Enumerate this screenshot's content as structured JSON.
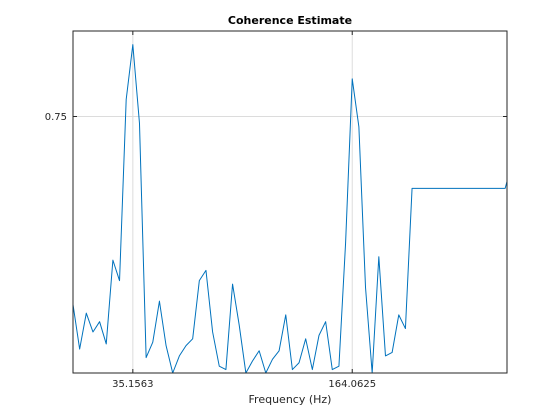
{
  "chart_data": {
    "type": "line",
    "title": "Coherence Estimate",
    "xlabel": "Frequency (Hz)",
    "ylabel": "",
    "xlim": [
      0,
      255
    ],
    "ylim": [
      0,
      1
    ],
    "xticks": [
      35.15625,
      164.0625
    ],
    "xtick_labels": [
      "35.1563",
      "164.0625"
    ],
    "yticks": [
      0.75
    ],
    "ytick_labels": [
      "0.75"
    ],
    "grid": true,
    "line_color": "#0072BD",
    "series": [
      {
        "x": [
          0,
          3.906,
          7.813,
          11.719,
          15.625,
          19.531,
          23.438,
          27.344,
          31.25,
          35.156,
          39.063,
          42.969,
          46.875,
          50.781,
          54.688,
          58.594,
          62.5,
          66.406,
          70.313,
          74.219,
          78.125,
          82.031,
          85.938,
          89.844,
          93.75,
          97.656,
          101.563,
          105.469,
          109.375,
          113.281,
          117.188,
          121.094,
          125,
          128.906,
          132.813,
          136.719,
          140.625,
          144.531,
          148.438,
          152.344,
          156.25,
          160.156,
          164.063,
          167.969,
          171.875,
          175.781,
          179.688,
          183.594,
          187.5,
          191.406,
          195.313,
          199.219,
          203.125,
          207.031,
          210.938,
          214.844,
          218.75,
          222.656,
          226.563,
          230.469,
          234.375,
          238.281,
          242.188,
          246.094,
          250,
          253.906,
          255
        ],
        "y": [
          0.2,
          0.07,
          0.175,
          0.12,
          0.15,
          0.085,
          0.33,
          0.27,
          0.8,
          0.96,
          0.73,
          0.045,
          0.09,
          0.21,
          0.08,
          0.0,
          0.05,
          0.08,
          0.1,
          0.27,
          0.3,
          0.12,
          0.02,
          0.01,
          0.26,
          0.14,
          0.0,
          0.035,
          0.065,
          0.0,
          0.04,
          0.065,
          0.17,
          0.01,
          0.03,
          0.1,
          0.01,
          0.11,
          0.15,
          0.01,
          0.02,
          0.38,
          0.86,
          0.72,
          0.25,
          0.0,
          0.34,
          0.05,
          0.06,
          0.17,
          0.13,
          0.54,
          0.54,
          0.54,
          0.54,
          0.54,
          0.54,
          0.54,
          0.54,
          0.54,
          0.54,
          0.54,
          0.54,
          0.54,
          0.54,
          0.54,
          0.56
        ]
      }
    ]
  }
}
